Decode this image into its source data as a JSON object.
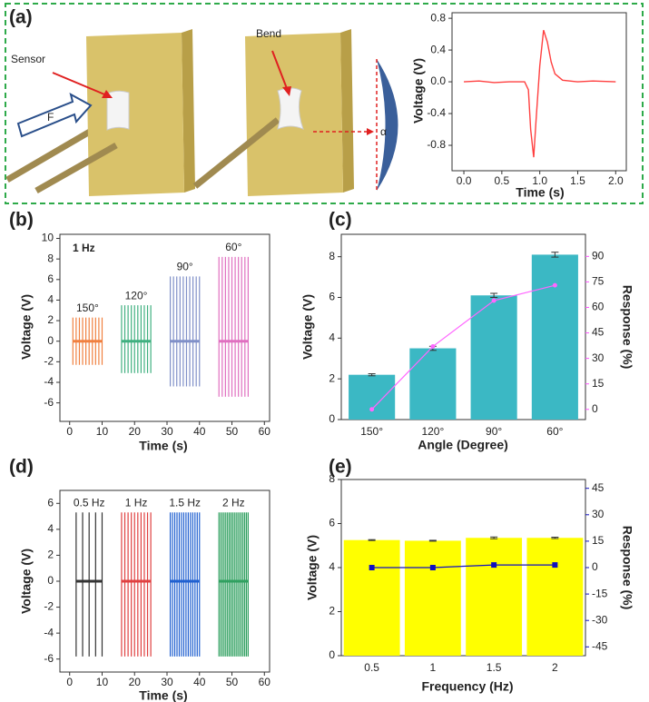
{
  "chart_data": [
    {
      "type": "line",
      "panel": "(a)",
      "xlabel": "Time (s)",
      "ylabel": "Voltage (V)",
      "x": [
        0,
        0.2,
        0.4,
        0.6,
        0.8,
        0.85,
        0.88,
        0.92,
        0.95,
        1.0,
        1.05,
        1.1,
        1.15,
        1.2,
        1.3,
        1.5,
        1.7,
        2.0
      ],
      "series": [
        {
          "color": "#ff4040",
          "values": [
            0,
            0.01,
            -0.01,
            0,
            0,
            -0.1,
            -0.6,
            -0.95,
            -0.5,
            0.2,
            0.65,
            0.5,
            0.25,
            0.1,
            0.02,
            0,
            0.01,
            0
          ]
        }
      ],
      "xlim": [
        -0.156,
        2.14
      ],
      "xticks": [
        {
          "value": 0,
          "label": "0.0"
        },
        0.5,
        {
          "value": 1,
          "label": "1.0"
        },
        1.5,
        {
          "value": 2,
          "label": "2.0"
        }
      ],
      "ylim": [
        -1.12,
        0.87
      ],
      "yticks": [
        -0.8,
        -0.4,
        {
          "value": 0,
          "label": "0.0"
        },
        0.4,
        0.8
      ]
    },
    {
      "type": "burst",
      "panel": "(b)",
      "xlabel": "Time (s)",
      "ylabel": "Voltage (V)",
      "annotation": "1 Hz",
      "series": [
        {
          "name": "150°",
          "color": "#f08040",
          "x": [
            1,
            10
          ],
          "values": [
            2.3,
            -2.3
          ],
          "count": 10
        },
        {
          "name": "120°",
          "color": "#40b080",
          "x": [
            16,
            25
          ],
          "values": [
            3.5,
            -3.1
          ],
          "count": 10
        },
        {
          "name": "90°",
          "color": "#8090c8",
          "x": [
            31,
            40
          ],
          "values": [
            6.3,
            -4.4
          ],
          "count": 10
        },
        {
          "name": "60°",
          "color": "#e070c0",
          "x": [
            46,
            55
          ],
          "values": [
            8.2,
            -5.4
          ],
          "count": 10
        }
      ],
      "xlim": [
        -3,
        61.6
      ],
      "xticks": [
        0,
        10,
        20,
        30,
        40,
        50,
        60
      ],
      "ylim": [
        -7.8,
        10.4
      ],
      "yticks": [
        -6,
        -4,
        -2,
        0,
        2,
        4,
        6,
        8,
        10
      ]
    },
    {
      "type": "bar_line",
      "panel": "(c)",
      "xlabel": "Angle (Degree)",
      "ylabel": "Voltage (V)",
      "y2label": "Response (%)",
      "ylabel_color": "#3bb8c4",
      "y2_color": "#ff55ff",
      "ytick_color": "#333333",
      "categories": [
        "150°",
        "120°",
        "90°",
        "60°"
      ],
      "series": [
        {
          "kind": "bar",
          "color": "#3bb8c4",
          "values": [
            2.2,
            3.5,
            6.1,
            8.1
          ],
          "errors": [
            0.05,
            0.1,
            0.1,
            0.12
          ]
        },
        {
          "kind": "line",
          "axis": "y2",
          "marker": "circle",
          "color": "#ff66ff",
          "values": [
            0,
            37,
            64,
            73
          ]
        }
      ],
      "ylim": [
        0,
        9.1
      ],
      "yticks": [
        0,
        2,
        4,
        6,
        8
      ],
      "y2lim": [
        -6,
        103
      ],
      "y2ticks": [
        0,
        15,
        30,
        45,
        60,
        75,
        90
      ]
    },
    {
      "type": "burst",
      "panel": "(d)",
      "xlabel": "Time (s)",
      "ylabel": "Voltage (V)",
      "series": [
        {
          "name": "0.5 Hz",
          "color": "#333333",
          "x": [
            2,
            10
          ],
          "values": [
            5.3,
            -5.8
          ],
          "count": 5
        },
        {
          "name": "1 Hz",
          "color": "#e04040",
          "x": [
            16,
            25
          ],
          "values": [
            5.3,
            -5.8
          ],
          "count": 10
        },
        {
          "name": "1.5 Hz",
          "color": "#2060d0",
          "x": [
            31,
            40
          ],
          "values": [
            5.3,
            -5.8
          ],
          "count": 14
        },
        {
          "name": "2 Hz",
          "color": "#30a060",
          "x": [
            46,
            55
          ],
          "values": [
            5.3,
            -5.8
          ],
          "count": 18
        }
      ],
      "xlim": [
        -3,
        61.6
      ],
      "xticks": [
        0,
        10,
        20,
        30,
        40,
        50,
        60
      ],
      "ylim": [
        -7,
        7
      ],
      "yticks": [
        -6,
        -4,
        -2,
        0,
        2,
        4,
        6
      ]
    },
    {
      "type": "bar_line",
      "panel": "(e)",
      "xlabel": "Frequency (Hz)",
      "ylabel": "Voltage (V)",
      "y2label": "Response (%)",
      "ylabel_color": "#c8c000",
      "y2_color": "#1010c0",
      "ytick_color": "#c8c000",
      "categories": [
        "0.5",
        "1",
        "1.5",
        "2"
      ],
      "series": [
        {
          "kind": "bar",
          "color": "#ffff00",
          "values": [
            5.25,
            5.22,
            5.35,
            5.35
          ],
          "errors": [
            0.02,
            0.02,
            0.04,
            0.03
          ]
        },
        {
          "kind": "line",
          "axis": "y2",
          "marker": "square",
          "color": "#1010c0",
          "values": [
            0,
            0,
            1.5,
            1.5
          ]
        }
      ],
      "ylim": [
        0,
        8
      ],
      "yticks": [
        0,
        2,
        4,
        6,
        8
      ],
      "y2lim": [
        -50,
        50
      ],
      "y2ticks": [
        -45,
        -30,
        -15,
        0,
        15,
        30,
        45
      ]
    }
  ],
  "illustration": {
    "sensor_label": "Sensor",
    "bend_label": "Bend",
    "force_label": "F",
    "angle_label": "α"
  }
}
